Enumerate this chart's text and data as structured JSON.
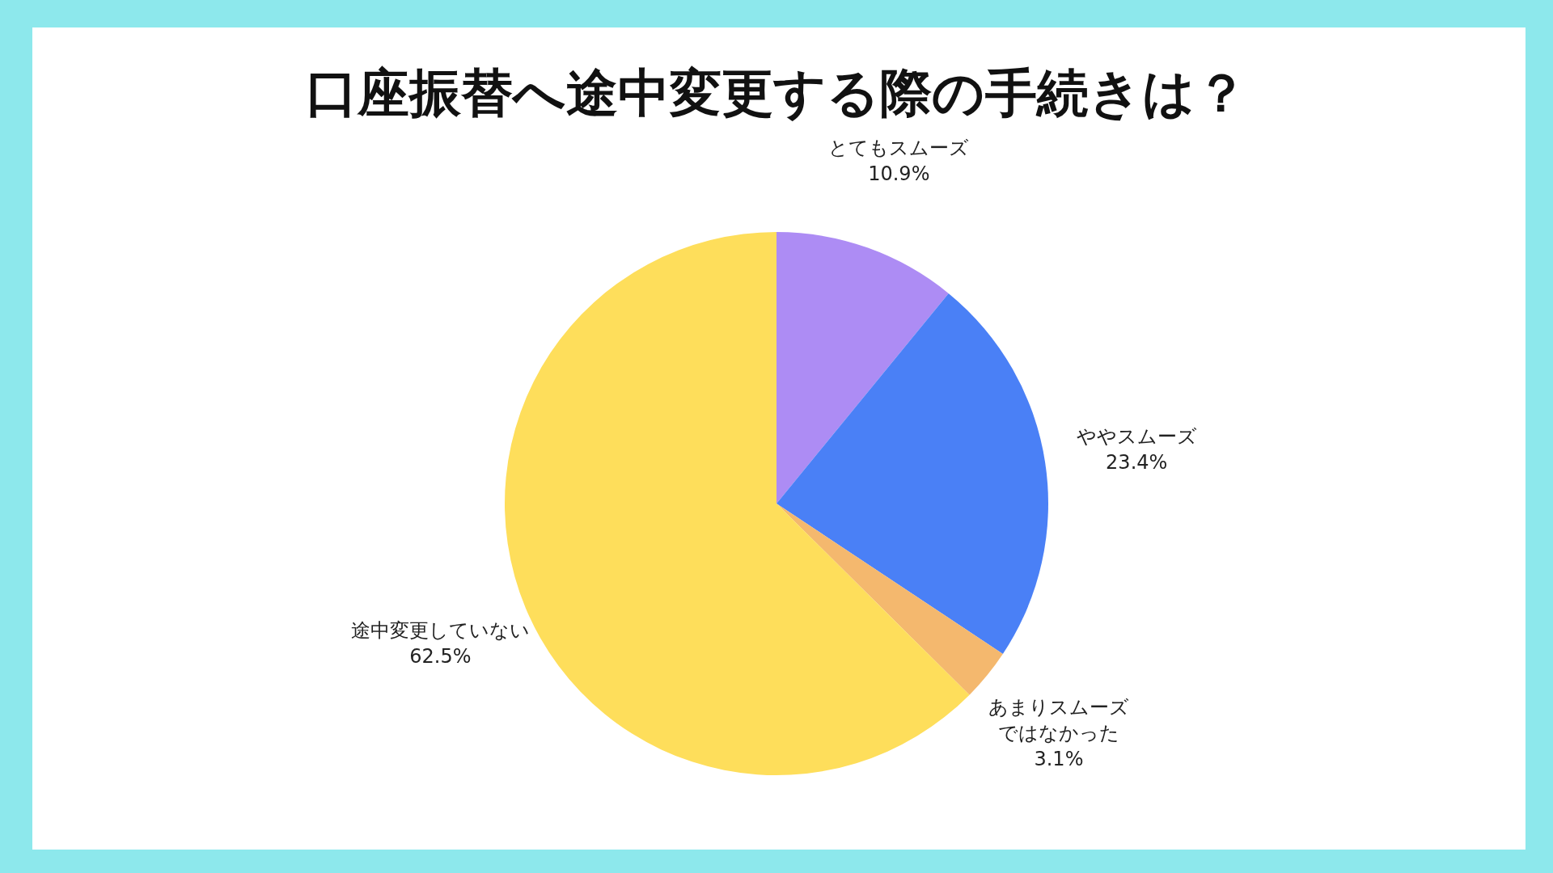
{
  "chart_data": {
    "type": "pie",
    "title": "口座振替へ途中変更する際の手続きは？",
    "categories": [
      "とてもスムーズ",
      "ややスムーズ",
      "あまりスムーズではなかった",
      "途中変更していない"
    ],
    "values": [
      10.9,
      23.4,
      3.1,
      62.5
    ],
    "colors": [
      "#ad8cf4",
      "#4a80f6",
      "#f4b86e",
      "#fede5b"
    ],
    "value_labels": [
      "10.9%",
      "23.4%",
      "3.1%",
      "62.5%"
    ]
  }
}
